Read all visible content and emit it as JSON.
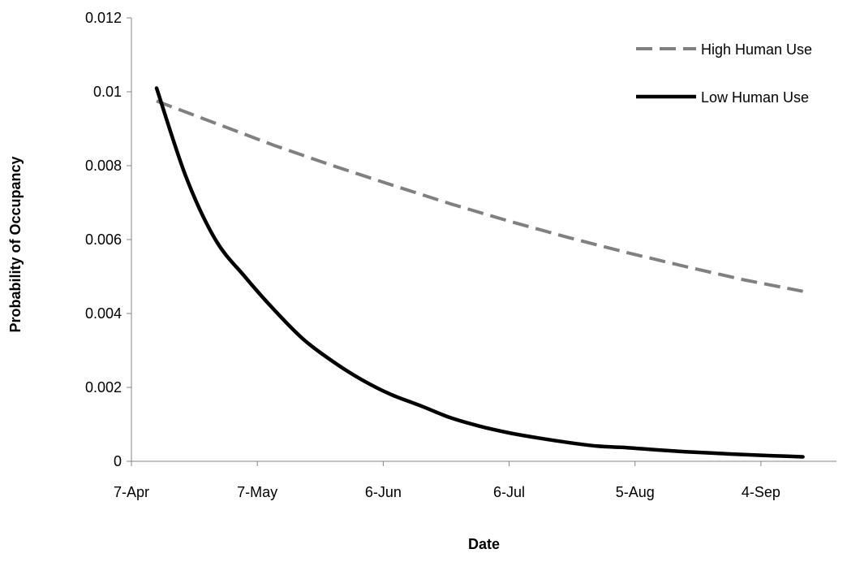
{
  "chart_data": {
    "type": "line",
    "xlabel": "Date",
    "ylabel": "Probability of Occupancy",
    "x_axis_type": "date",
    "xlim": [
      "2013-04-07",
      "2013-09-22"
    ],
    "ylim": [
      0,
      0.012
    ],
    "x_ticks": [
      {
        "date": "2013-04-07",
        "label": "7-Apr"
      },
      {
        "date": "2013-05-07",
        "label": "7-May"
      },
      {
        "date": "2013-06-06",
        "label": "6-Jun"
      },
      {
        "date": "2013-07-06",
        "label": "6-Jul"
      },
      {
        "date": "2013-08-05",
        "label": "5-Aug"
      },
      {
        "date": "2013-09-04",
        "label": "4-Sep"
      }
    ],
    "y_ticks": [
      {
        "value": 0,
        "label": "0"
      },
      {
        "value": 0.002,
        "label": "0.002"
      },
      {
        "value": 0.004,
        "label": "0.004"
      },
      {
        "value": 0.006,
        "label": "0.006"
      },
      {
        "value": 0.008,
        "label": "0.008"
      },
      {
        "value": 0.01,
        "label": "0.01"
      },
      {
        "value": 0.012,
        "label": "0.012"
      }
    ],
    "grid": false,
    "legend_position": "top-right",
    "series": [
      {
        "name": "High Human Use",
        "color": "#808080",
        "line_style": "dashed",
        "points": [
          {
            "x": "2013-04-13",
            "y": 0.00975
          },
          {
            "x": "2013-04-27",
            "y": 0.00915
          },
          {
            "x": "2013-05-11",
            "y": 0.00855
          },
          {
            "x": "2013-05-25",
            "y": 0.008
          },
          {
            "x": "2013-06-08",
            "y": 0.00748
          },
          {
            "x": "2013-06-22",
            "y": 0.00697
          },
          {
            "x": "2013-07-06",
            "y": 0.0065
          },
          {
            "x": "2013-07-20",
            "y": 0.00606
          },
          {
            "x": "2013-08-03",
            "y": 0.00565
          },
          {
            "x": "2013-08-17",
            "y": 0.00527
          },
          {
            "x": "2013-08-31",
            "y": 0.00491
          },
          {
            "x": "2013-09-14",
            "y": 0.0046
          }
        ]
      },
      {
        "name": "Low Human Use",
        "color": "#000000",
        "line_style": "solid",
        "points": [
          {
            "x": "2013-04-13",
            "y": 0.0101
          },
          {
            "x": "2013-04-20",
            "y": 0.0077
          },
          {
            "x": "2013-04-27",
            "y": 0.006
          },
          {
            "x": "2013-05-04",
            "y": 0.005
          },
          {
            "x": "2013-05-11",
            "y": 0.0041
          },
          {
            "x": "2013-05-18",
            "y": 0.0033
          },
          {
            "x": "2013-05-25",
            "y": 0.0027
          },
          {
            "x": "2013-06-01",
            "y": 0.0022
          },
          {
            "x": "2013-06-08",
            "y": 0.0018
          },
          {
            "x": "2013-06-15",
            "y": 0.0015
          },
          {
            "x": "2013-06-22",
            "y": 0.00118
          },
          {
            "x": "2013-06-29",
            "y": 0.00095
          },
          {
            "x": "2013-07-06",
            "y": 0.00077
          },
          {
            "x": "2013-07-13",
            "y": 0.00063
          },
          {
            "x": "2013-07-20",
            "y": 0.00051
          },
          {
            "x": "2013-07-27",
            "y": 0.00041
          },
          {
            "x": "2013-08-03",
            "y": 0.00037
          },
          {
            "x": "2013-08-10",
            "y": 0.00031
          },
          {
            "x": "2013-08-17",
            "y": 0.00026
          },
          {
            "x": "2013-08-24",
            "y": 0.00022
          },
          {
            "x": "2013-08-31",
            "y": 0.00018
          },
          {
            "x": "2013-09-07",
            "y": 0.00015
          },
          {
            "x": "2013-09-14",
            "y": 0.00012
          }
        ]
      }
    ]
  }
}
